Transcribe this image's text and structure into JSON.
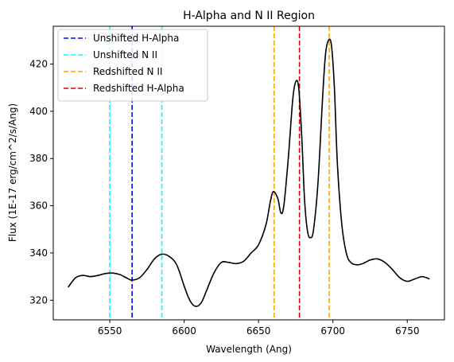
{
  "chart_data": {
    "type": "line",
    "title": "H-Alpha and N II Region",
    "xlabel": "Wavelength (Ang)",
    "ylabel": "Flux (1E-17 erg/cm^2/s/Ang)",
    "xlim": [
      6512,
      6775
    ],
    "ylim": [
      311.7,
      436
    ],
    "xticks": [
      6550,
      6600,
      6650,
      6700,
      6750
    ],
    "yticks": [
      320,
      340,
      360,
      380,
      400,
      420
    ],
    "grid": false,
    "legend_position": "upper-left",
    "series": [
      {
        "color": "#000000",
        "x": [
          6522,
          6527,
          6532,
          6537,
          6542,
          6547,
          6552,
          6557,
          6562,
          6565,
          6570,
          6575,
          6580,
          6585,
          6590,
          6595,
          6600,
          6603,
          6606,
          6609,
          6612,
          6615,
          6620,
          6625,
          6630,
          6635,
          6640,
          6645,
          6650,
          6655,
          6658,
          6660,
          6663,
          6665,
          6667,
          6670,
          6673,
          6675,
          6677,
          6679,
          6681,
          6683,
          6685,
          6687,
          6690,
          6693,
          6695,
          6697,
          6699,
          6701,
          6703,
          6706,
          6709,
          6712,
          6716,
          6720,
          6725,
          6730,
          6735,
          6740,
          6745,
          6750,
          6755,
          6760,
          6765
        ],
        "y": [
          325.5,
          329.5,
          330.5,
          330.0,
          330.5,
          331.3,
          331.5,
          330.8,
          329.2,
          328.5,
          329.5,
          333.0,
          337.5,
          339.5,
          338.5,
          335.0,
          326.0,
          321.0,
          318.0,
          317.5,
          319.5,
          324.0,
          331.5,
          336.0,
          336.0,
          335.5,
          336.5,
          340.0,
          343.5,
          352.0,
          362.0,
          366.0,
          363.0,
          357.0,
          360.0,
          380.0,
          405.0,
          412.5,
          410.0,
          390.0,
          362.0,
          349.0,
          346.5,
          350.0,
          370.0,
          405.0,
          424.0,
          430.0,
          428.0,
          410.0,
          378.0,
          352.0,
          340.0,
          336.0,
          335.0,
          335.5,
          337.0,
          337.5,
          336.0,
          333.0,
          329.5,
          328.0,
          329.0,
          330.0,
          329.0
        ]
      }
    ],
    "vlines": [
      {
        "name": "Unshifted H-Alpha",
        "x": 6565,
        "color": "#0000ff"
      },
      {
        "name": "Unshifted N II",
        "x": 6550,
        "color": "#00ffff"
      },
      {
        "name": "Unshifted N II",
        "x": 6585,
        "color": "#00ffff"
      },
      {
        "name": "Redshifted N II",
        "x": 6660.5,
        "color": "#ffa500"
      },
      {
        "name": "Redshifted H-Alpha",
        "x": 6677.5,
        "color": "#e00000"
      },
      {
        "name": "Redshifted N II",
        "x": 6697.5,
        "color": "#ffa500"
      }
    ],
    "legend": [
      {
        "label": "Unshifted H-Alpha",
        "color": "#0000ff"
      },
      {
        "label": "Unshifted N II",
        "color": "#00ffff"
      },
      {
        "label": "Redshifted N II",
        "color": "#ffa500"
      },
      {
        "label": "Redshifted H-Alpha",
        "color": "#e00000"
      }
    ]
  }
}
